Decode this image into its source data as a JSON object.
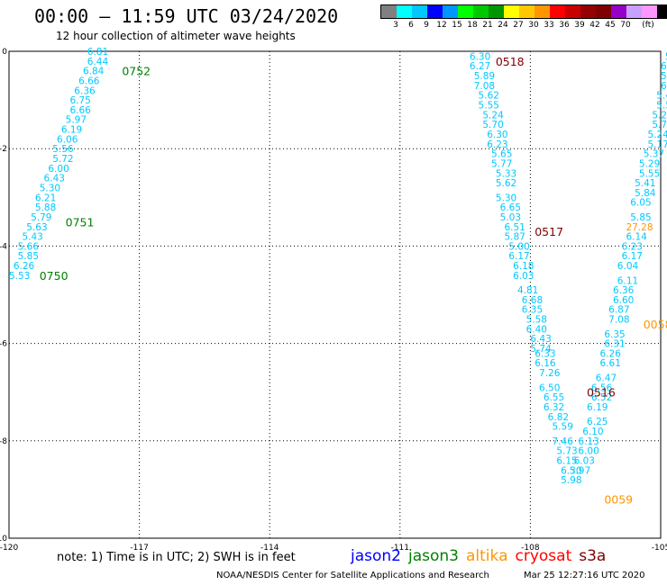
{
  "header": {
    "title": "00:00 – 11:59 UTC 03/24/2020",
    "subtitle": "12 hour collection of altimeter wave heights"
  },
  "color_legend": {
    "unit": "(ft)",
    "colors": [
      "#808080",
      "#00ffff",
      "#00c8ff",
      "#0000ff",
      "#0096ff",
      "#00ff00",
      "#00c800",
      "#009600",
      "#ffff00",
      "#ffc800",
      "#ff9600",
      "#ff0000",
      "#c80000",
      "#960000",
      "#800000",
      "#9600c8",
      "#c8a0ff",
      "#ff96ff",
      "#000000"
    ],
    "labels": [
      "3",
      "6",
      "9",
      "12",
      "15",
      "18",
      "21",
      "24",
      "27",
      "30",
      "33",
      "36",
      "39",
      "42",
      "45",
      "70"
    ]
  },
  "axes": {
    "x_ticks": [
      "-120",
      "-117",
      "-114",
      "-111",
      "-108",
      "-105"
    ],
    "y_ticks": [
      "0",
      "-2",
      "-4",
      "-6",
      "-8",
      "-10"
    ]
  },
  "map_data": {
    "bounds": {
      "lon": [
        -120,
        -105
      ],
      "lat": [
        -10,
        0
      ]
    },
    "time_labels": [
      {
        "text": "0752",
        "lon": -117.4,
        "lat": -0.4,
        "color": "#008000"
      },
      {
        "text": "0751",
        "lon": -118.7,
        "lat": -3.5,
        "color": "#008000"
      },
      {
        "text": "0750",
        "lon": -119.3,
        "lat": -4.6,
        "color": "#008000"
      },
      {
        "text": "0518",
        "lon": -108.8,
        "lat": -0.2,
        "color": "#800000"
      },
      {
        "text": "0517",
        "lon": -107.9,
        "lat": -3.7,
        "color": "#800000"
      },
      {
        "text": "0516",
        "lon": -106.7,
        "lat": -7.0,
        "color": "#800000"
      },
      {
        "text": "0058",
        "lon": -105.4,
        "lat": -5.6,
        "color": "#ff9600"
      },
      {
        "text": "0059",
        "lon": -106.3,
        "lat": -9.2,
        "color": "#ff9600"
      }
    ],
    "tracks": [
      {
        "color": "#00c8ff",
        "points": [
          {
            "text": "6.81",
            "lon": -118.2,
            "lat": 0.0
          },
          {
            "text": "6.44",
            "lon": -118.2,
            "lat": -0.2
          },
          {
            "text": "6.84",
            "lon": -118.3,
            "lat": -0.4
          },
          {
            "text": "6.66",
            "lon": -118.4,
            "lat": -0.6
          },
          {
            "text": "6.36",
            "lon": -118.5,
            "lat": -0.8
          },
          {
            "text": "6.75",
            "lon": -118.6,
            "lat": -1.0
          },
          {
            "text": "6.66",
            "lon": -118.6,
            "lat": -1.2
          },
          {
            "text": "5.97",
            "lon": -118.7,
            "lat": -1.4
          },
          {
            "text": "6.19",
            "lon": -118.8,
            "lat": -1.6
          },
          {
            "text": "6.06",
            "lon": -118.9,
            "lat": -1.8
          },
          {
            "text": "5.56",
            "lon": -119.0,
            "lat": -2.0
          },
          {
            "text": "5.72",
            "lon": -119.0,
            "lat": -2.2
          },
          {
            "text": "6.00",
            "lon": -119.1,
            "lat": -2.4
          },
          {
            "text": "6.43",
            "lon": -119.2,
            "lat": -2.6
          },
          {
            "text": "5.30",
            "lon": -119.3,
            "lat": -2.8
          },
          {
            "text": "6.21",
            "lon": -119.4,
            "lat": -3.0
          },
          {
            "text": "5.88",
            "lon": -119.4,
            "lat": -3.2
          },
          {
            "text": "5.79",
            "lon": -119.5,
            "lat": -3.4
          },
          {
            "text": "5.63",
            "lon": -119.6,
            "lat": -3.6
          },
          {
            "text": "5.43",
            "lon": -119.7,
            "lat": -3.8
          },
          {
            "text": "5.66",
            "lon": -119.8,
            "lat": -4.0
          },
          {
            "text": "5.85",
            "lon": -119.8,
            "lat": -4.2
          },
          {
            "text": "6.26",
            "lon": -119.9,
            "lat": -4.4
          },
          {
            "text": "5.53",
            "lon": -120.0,
            "lat": -4.6
          }
        ]
      },
      {
        "color": "#00c8ff",
        "points": [
          {
            "text": "6.30",
            "lon": -109.4,
            "lat": -0.1
          },
          {
            "text": "6.27",
            "lon": -109.4,
            "lat": -0.3
          },
          {
            "text": "5.89",
            "lon": -109.3,
            "lat": -0.5
          },
          {
            "text": "7.08",
            "lon": -109.3,
            "lat": -0.7
          },
          {
            "text": "5.62",
            "lon": -109.2,
            "lat": -0.9
          },
          {
            "text": "5.55",
            "lon": -109.2,
            "lat": -1.1
          },
          {
            "text": "5.24",
            "lon": -109.1,
            "lat": -1.3
          },
          {
            "text": "5.70",
            "lon": -109.1,
            "lat": -1.5
          },
          {
            "text": "6.30",
            "lon": -109.0,
            "lat": -1.7
          },
          {
            "text": "6.23",
            "lon": -109.0,
            "lat": -1.9
          },
          {
            "text": "5.65",
            "lon": -108.9,
            "lat": -2.1
          },
          {
            "text": "5.77",
            "lon": -108.9,
            "lat": -2.3
          },
          {
            "text": "5.33",
            "lon": -108.8,
            "lat": -2.5
          },
          {
            "text": "5.62",
            "lon": -108.8,
            "lat": -2.7
          },
          {
            "text": "5.30",
            "lon": -108.8,
            "lat": -3.0
          },
          {
            "text": "6.65",
            "lon": -108.7,
            "lat": -3.2
          },
          {
            "text": "5.03",
            "lon": -108.7,
            "lat": -3.4
          },
          {
            "text": "6.51",
            "lon": -108.6,
            "lat": -3.6
          },
          {
            "text": "5.87",
            "lon": -108.6,
            "lat": -3.8
          },
          {
            "text": "5.00",
            "lon": -108.5,
            "lat": -4.0
          },
          {
            "text": "6.17",
            "lon": -108.5,
            "lat": -4.2
          },
          {
            "text": "6.18",
            "lon": -108.4,
            "lat": -4.4
          },
          {
            "text": "6.03",
            "lon": -108.4,
            "lat": -4.6
          },
          {
            "text": "4.81",
            "lon": -108.3,
            "lat": -4.9
          },
          {
            "text": "6.68",
            "lon": -108.2,
            "lat": -5.1
          },
          {
            "text": "6.35",
            "lon": -108.2,
            "lat": -5.3
          },
          {
            "text": "5.58",
            "lon": -108.1,
            "lat": -5.5
          },
          {
            "text": "6.40",
            "lon": -108.1,
            "lat": -5.7
          },
          {
            "text": "6.43",
            "lon": -108.0,
            "lat": -5.9
          },
          {
            "text": "5.74",
            "lon": -108.0,
            "lat": -6.1
          }
        ]
      },
      {
        "color": "#00c8ff",
        "points": [
          {
            "text": "6.33",
            "lon": -107.9,
            "lat": -6.2
          },
          {
            "text": "6.16",
            "lon": -107.9,
            "lat": -6.4
          },
          {
            "text": "7.26",
            "lon": -107.8,
            "lat": -6.6
          },
          {
            "text": "6.50",
            "lon": -107.8,
            "lat": -6.9
          },
          {
            "text": "6.55",
            "lon": -107.7,
            "lat": -7.1
          },
          {
            "text": "6.32",
            "lon": -107.7,
            "lat": -7.3
          },
          {
            "text": "6.82",
            "lon": -107.6,
            "lat": -7.5
          },
          {
            "text": "5.59",
            "lon": -107.5,
            "lat": -7.7
          },
          {
            "text": "7.46",
            "lon": -107.5,
            "lat": -8.0
          },
          {
            "text": "5.73",
            "lon": -107.4,
            "lat": -8.2
          },
          {
            "text": "6.15",
            "lon": -107.4,
            "lat": -8.4
          },
          {
            "text": "6.30",
            "lon": -107.3,
            "lat": -8.6
          },
          {
            "text": "5.98",
            "lon": -107.3,
            "lat": -8.8
          }
        ]
      },
      {
        "color": "#00c8ff",
        "points": [
          {
            "text": "5.",
            "lon": -104.9,
            "lat": -0.1
          },
          {
            "text": "6.4",
            "lon": -105.0,
            "lat": -0.3
          },
          {
            "text": "5.9",
            "lon": -105.0,
            "lat": -0.5
          },
          {
            "text": "6.0",
            "lon": -105.0,
            "lat": -0.7
          },
          {
            "text": "5.41",
            "lon": -105.1,
            "lat": -0.9
          },
          {
            "text": "5.58",
            "lon": -105.1,
            "lat": -1.1
          },
          {
            "text": "5.23",
            "lon": -105.2,
            "lat": -1.3
          },
          {
            "text": "5.73",
            "lon": -105.2,
            "lat": -1.5
          },
          {
            "text": "5.24",
            "lon": -105.3,
            "lat": -1.7
          },
          {
            "text": "5.17",
            "lon": -105.3,
            "lat": -1.9
          },
          {
            "text": "5.37",
            "lon": -105.4,
            "lat": -2.1
          },
          {
            "text": "5.29",
            "lon": -105.5,
            "lat": -2.3
          },
          {
            "text": "5.55",
            "lon": -105.5,
            "lat": -2.5
          },
          {
            "text": "5.41",
            "lon": -105.6,
            "lat": -2.7
          },
          {
            "text": "5.84",
            "lon": -105.6,
            "lat": -2.9
          },
          {
            "text": "6.05",
            "lon": -105.7,
            "lat": -3.1
          },
          {
            "text": "5.85",
            "lon": -105.7,
            "lat": -3.4
          },
          {
            "text": "27.28",
            "lon": -105.8,
            "lat": -3.6,
            "color": "#ff9600"
          },
          {
            "text": "6.14",
            "lon": -105.8,
            "lat": -3.8
          },
          {
            "text": "6.23",
            "lon": -105.9,
            "lat": -4.0
          },
          {
            "text": "6.17",
            "lon": -105.9,
            "lat": -4.2
          },
          {
            "text": "6.04",
            "lon": -106.0,
            "lat": -4.4
          },
          {
            "text": "6.11",
            "lon": -106.0,
            "lat": -4.7
          },
          {
            "text": "6.36",
            "lon": -106.1,
            "lat": -4.9
          },
          {
            "text": "6.60",
            "lon": -106.1,
            "lat": -5.1
          },
          {
            "text": "6.87",
            "lon": -106.2,
            "lat": -5.3
          },
          {
            "text": "7.08",
            "lon": -106.2,
            "lat": -5.5
          },
          {
            "text": "6.35",
            "lon": -106.3,
            "lat": -5.8
          },
          {
            "text": "6.31",
            "lon": -106.3,
            "lat": -6.0
          },
          {
            "text": "6.26",
            "lon": -106.4,
            "lat": -6.2
          },
          {
            "text": "6.61",
            "lon": -106.4,
            "lat": -6.4
          },
          {
            "text": "6.47",
            "lon": -106.5,
            "lat": -6.7
          },
          {
            "text": "6.56",
            "lon": -106.6,
            "lat": -6.9
          },
          {
            "text": "6.52",
            "lon": -106.6,
            "lat": -7.1
          },
          {
            "text": "6.19",
            "lon": -106.7,
            "lat": -7.3
          },
          {
            "text": "6.25",
            "lon": -106.7,
            "lat": -7.6
          },
          {
            "text": "6.10",
            "lon": -106.8,
            "lat": -7.8
          },
          {
            "text": "6.13",
            "lon": -106.9,
            "lat": -8.0
          },
          {
            "text": "6.00",
            "lon": -106.9,
            "lat": -8.2
          },
          {
            "text": "6.03",
            "lon": -107.0,
            "lat": -8.4
          },
          {
            "text": "5.97",
            "lon": -107.1,
            "lat": -8.6
          }
        ]
      }
    ]
  },
  "footer": {
    "note": "note:  1) Time is in UTC;  2) SWH is in feet",
    "satellites": [
      {
        "name": "jason2",
        "color": "#0000ff"
      },
      {
        "name": "jason3",
        "color": "#008000"
      },
      {
        "name": "altika",
        "color": "#ff9600"
      },
      {
        "name": "cryosat",
        "color": "#ff0000"
      },
      {
        "name": "s3a",
        "color": "#800000"
      }
    ],
    "credit": "NOAA/NESDIS Center for Satellite Applications and Research",
    "timestamp": "Mar 25 12:27:16 UTC 2020"
  }
}
